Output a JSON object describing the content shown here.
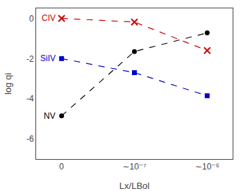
{
  "chart_data": {
    "type": "line",
    "categories": [
      "0",
      "∼10⁻⁷",
      "∼10⁻⁶"
    ],
    "xlabel": "Lx/LBol",
    "ylabel": "log qi",
    "ylim": [
      -7,
      0.5
    ],
    "yticks": [
      0,
      -2,
      -4,
      -6
    ],
    "grid": false,
    "series": [
      {
        "name": "CIV",
        "color": "#cc0000",
        "marker": "x",
        "line_style": "dash",
        "values": [
          0.0,
          -0.18,
          -1.6
        ]
      },
      {
        "name": "SiIV",
        "color": "#0000cc",
        "marker": "square",
        "line_style": "dash",
        "values": [
          -2.0,
          -2.7,
          -3.85
        ]
      },
      {
        "name": "NV",
        "color": "#000000",
        "marker": "circle",
        "line_style": "dash",
        "values": [
          -4.85,
          -1.65,
          -0.72
        ]
      }
    ]
  }
}
